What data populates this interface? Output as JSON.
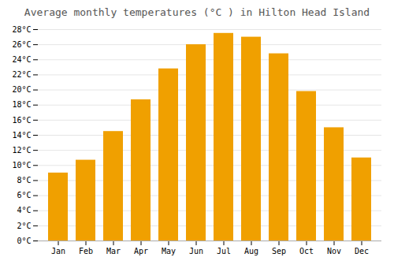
{
  "chart_data": {
    "type": "bar",
    "title": "Average monthly temperatures (°C ) in Hilton Head Island",
    "categories": [
      "Jan",
      "Feb",
      "Mar",
      "Apr",
      "May",
      "Jun",
      "Jul",
      "Aug",
      "Sep",
      "Oct",
      "Nov",
      "Dec"
    ],
    "values": [
      9.0,
      10.7,
      14.5,
      18.7,
      22.8,
      26.0,
      27.5,
      27.0,
      24.8,
      19.8,
      15.0,
      11.0
    ],
    "color": "#F0A000",
    "ylim": [
      0,
      28
    ],
    "yticks": [
      {
        "value": 0,
        "label": "0°C"
      },
      {
        "value": 2,
        "label": "2°C"
      },
      {
        "value": 4,
        "label": "4°C"
      },
      {
        "value": 6,
        "label": "6°C"
      },
      {
        "value": 8,
        "label": "8°C"
      },
      {
        "value": 10,
        "label": "10°C"
      },
      {
        "value": 12,
        "label": "12°C"
      },
      {
        "value": 14,
        "label": "14°C"
      },
      {
        "value": 16,
        "label": "16°C"
      },
      {
        "value": 18,
        "label": "18°C"
      },
      {
        "value": 20,
        "label": "20°C"
      },
      {
        "value": 22,
        "label": "22°C"
      },
      {
        "value": 24,
        "label": "24°C"
      },
      {
        "value": 26,
        "label": "26°C"
      },
      {
        "value": 28,
        "label": "28°C"
      }
    ],
    "grid": true
  }
}
